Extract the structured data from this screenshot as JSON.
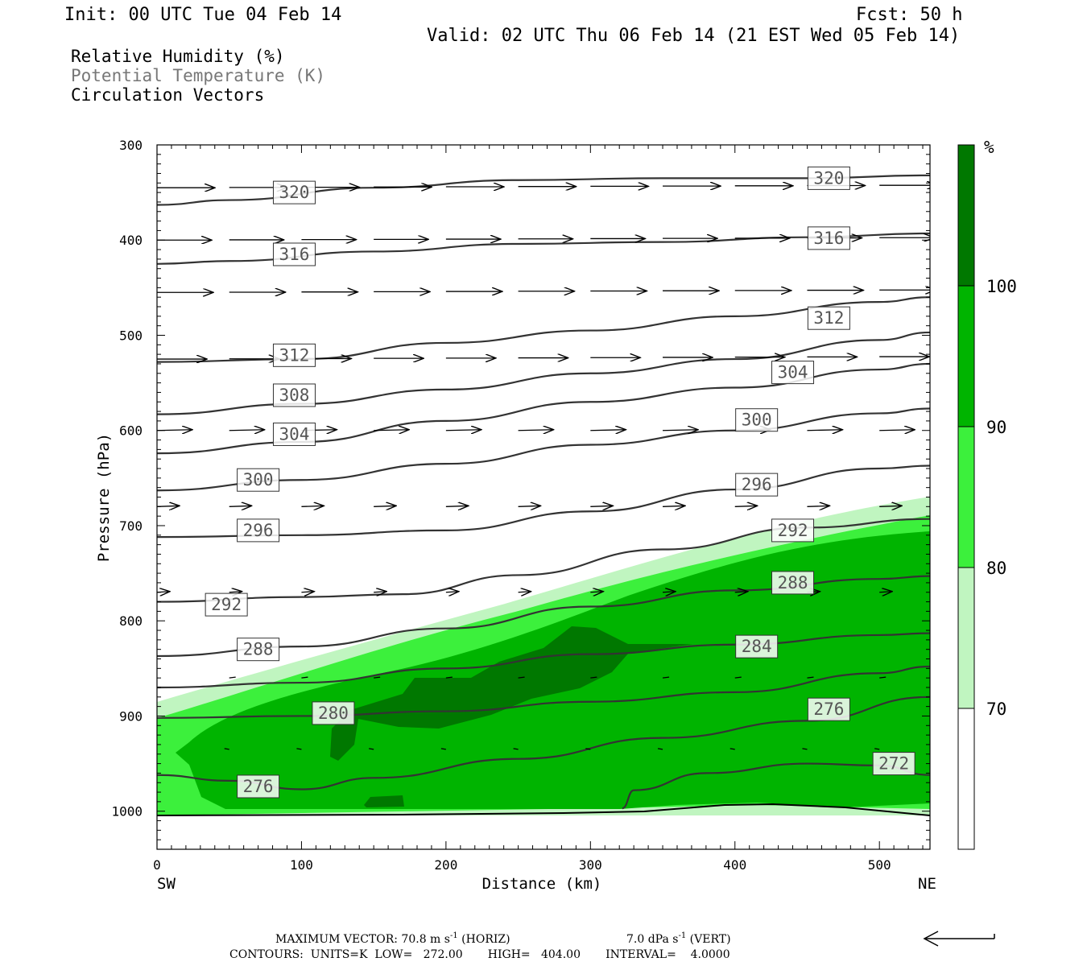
{
  "header": {
    "init": "Init: 00 UTC Tue 04 Feb 14",
    "fcst": "Fcst:   50 h",
    "valid": "Valid: 02 UTC Thu 06 Feb 14 (21 EST Wed 05 Feb 14)"
  },
  "legend": {
    "rh": "Relative Humidity (%)",
    "theta": "Potential Temperature (K)",
    "vectors": "Circulation Vectors"
  },
  "colors": {
    "rh70": "#c0f5c0",
    "rh80": "#3cf03c",
    "rh90": "#00b400",
    "rh100": "#007800",
    "contour": "#333333"
  },
  "chart_data": {
    "type": "contour",
    "xlabel": "Distance (km)",
    "ylabel": "Pressure (hPa)",
    "x_ticks": [
      0,
      100,
      200,
      300,
      400,
      500
    ],
    "xlim": [
      0,
      535
    ],
    "y_ticks": [
      300,
      400,
      500,
      600,
      700,
      800,
      900,
      1000
    ],
    "ylim": [
      1040,
      300
    ],
    "left_end": "SW",
    "right_end": "NE",
    "colorbar": {
      "unit": "%",
      "levels": [
        70,
        80,
        90,
        100
      ]
    },
    "theta_contours": [
      {
        "label": "320",
        "points": [
          [
            0,
            363
          ],
          [
            50,
            358
          ],
          [
            150,
            345
          ],
          [
            250,
            337
          ],
          [
            350,
            335
          ],
          [
            450,
            335
          ],
          [
            535,
            332
          ]
        ]
      },
      {
        "label": "316",
        "points": [
          [
            0,
            425
          ],
          [
            50,
            422
          ],
          [
            150,
            412
          ],
          [
            250,
            404
          ],
          [
            350,
            402
          ],
          [
            450,
            397
          ],
          [
            535,
            393
          ]
        ]
      },
      {
        "label": "312",
        "points": [
          [
            0,
            528
          ],
          [
            100,
            525
          ],
          [
            200,
            508
          ],
          [
            300,
            495
          ],
          [
            400,
            480
          ],
          [
            500,
            465
          ],
          [
            535,
            460
          ]
        ]
      },
      {
        "label": "308",
        "points": [
          [
            0,
            583
          ],
          [
            100,
            572
          ],
          [
            200,
            557
          ],
          [
            300,
            540
          ],
          [
            400,
            525
          ],
          [
            500,
            505
          ],
          [
            535,
            497
          ]
        ]
      },
      {
        "label": "304",
        "points": [
          [
            0,
            624
          ],
          [
            100,
            612
          ],
          [
            200,
            590
          ],
          [
            300,
            570
          ],
          [
            400,
            555
          ],
          [
            500,
            536
          ],
          [
            535,
            530
          ]
        ]
      },
      {
        "label": "300",
        "points": [
          [
            0,
            663
          ],
          [
            100,
            652
          ],
          [
            200,
            635
          ],
          [
            300,
            615
          ],
          [
            400,
            600
          ],
          [
            500,
            582
          ],
          [
            535,
            577
          ]
        ]
      },
      {
        "label": "296",
        "points": [
          [
            0,
            712
          ],
          [
            100,
            710
          ],
          [
            200,
            705
          ],
          [
            300,
            685
          ],
          [
            400,
            662
          ],
          [
            500,
            640
          ],
          [
            535,
            637
          ]
        ]
      },
      {
        "label": "292",
        "points": [
          [
            0,
            780
          ],
          [
            100,
            775
          ],
          [
            170,
            772
          ],
          [
            250,
            752
          ],
          [
            350,
            725
          ],
          [
            450,
            702
          ],
          [
            535,
            693
          ]
        ]
      },
      {
        "label": "288",
        "points": [
          [
            0,
            837
          ],
          [
            100,
            827
          ],
          [
            200,
            808
          ],
          [
            300,
            785
          ],
          [
            400,
            768
          ],
          [
            500,
            756
          ],
          [
            535,
            753
          ]
        ]
      },
      {
        "label": "284",
        "points": [
          [
            0,
            870
          ],
          [
            100,
            865
          ],
          [
            200,
            850
          ],
          [
            300,
            835
          ],
          [
            400,
            825
          ],
          [
            500,
            815
          ],
          [
            535,
            813
          ]
        ]
      },
      {
        "label": "280",
        "points": [
          [
            0,
            902
          ],
          [
            100,
            900
          ],
          [
            200,
            895
          ],
          [
            300,
            885
          ],
          [
            400,
            875
          ],
          [
            500,
            855
          ],
          [
            535,
            848
          ]
        ]
      },
      {
        "label": "276",
        "points": [
          [
            0,
            962
          ],
          [
            50,
            968
          ],
          [
            100,
            977
          ],
          [
            150,
            965
          ],
          [
            250,
            945
          ],
          [
            350,
            923
          ],
          [
            450,
            905
          ],
          [
            535,
            880
          ]
        ]
      },
      {
        "label": "272",
        "points": [
          [
            322,
            997
          ],
          [
            330,
            978
          ],
          [
            380,
            960
          ],
          [
            450,
            950
          ],
          [
            500,
            952
          ],
          [
            535,
            962
          ]
        ]
      }
    ],
    "max_vector": "MAXIMUM VECTOR:  70.8 m s",
    "max_vector_units_h": "(HORIZ)",
    "max_vector_v": "7.0 dPa s",
    "max_vector_units_v": "(VERT)",
    "contours_info": "CONTOURS:  UNITS=K  LOW=   272.00       HIGH=   404.00       INTERVAL=    4.0000"
  }
}
